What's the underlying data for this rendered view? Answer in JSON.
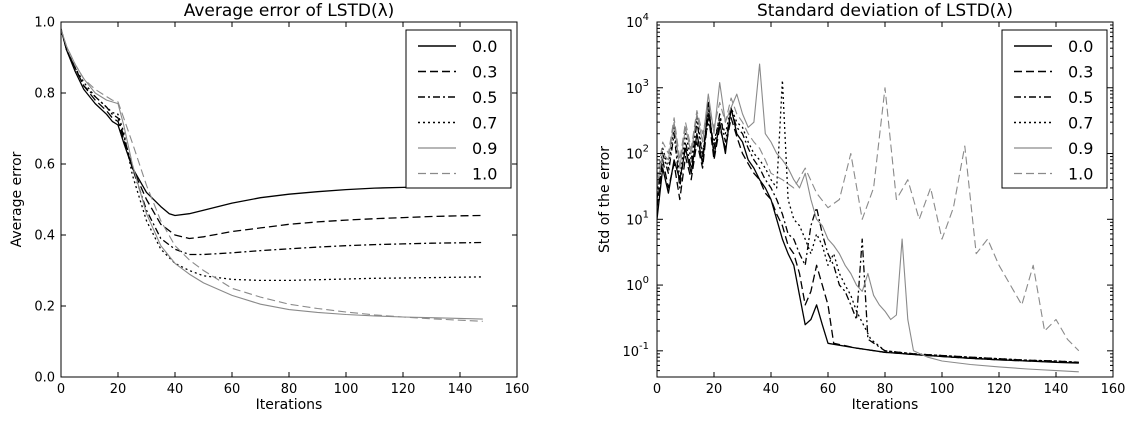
{
  "chart_data": [
    {
      "type": "line",
      "title": "Average error of LSTD(λ)",
      "xlabel": "Iterations",
      "ylabel": "Average error",
      "xlim": [
        0,
        160
      ],
      "ylim": [
        0.0,
        1.0
      ],
      "yscale": "linear",
      "xticks": [
        "0",
        "20",
        "40",
        "60",
        "80",
        "100",
        "120",
        "140",
        "160"
      ],
      "yticks": [
        "0.0",
        "0.2",
        "0.4",
        "0.6",
        "0.8",
        "1.0"
      ],
      "grid": false,
      "legend_position": "top-right",
      "series": [
        {
          "name": "0.0",
          "color": "#000000",
          "dash": "solid",
          "x": [
            0,
            2,
            5,
            8,
            12,
            16,
            18,
            20,
            22,
            25,
            30,
            35,
            38,
            40,
            45,
            50,
            60,
            70,
            80,
            90,
            100,
            110,
            120,
            130,
            140,
            148
          ],
          "y": [
            0.98,
            0.92,
            0.86,
            0.81,
            0.77,
            0.74,
            0.72,
            0.71,
            0.66,
            0.59,
            0.52,
            0.48,
            0.46,
            0.455,
            0.46,
            0.47,
            0.49,
            0.505,
            0.515,
            0.522,
            0.528,
            0.532,
            0.534,
            0.536,
            0.538,
            0.54
          ]
        },
        {
          "name": "0.3",
          "color": "#000000",
          "dash": "dashed",
          "x": [
            0,
            2,
            5,
            8,
            12,
            16,
            18,
            20,
            22,
            25,
            30,
            35,
            40,
            45,
            50,
            60,
            70,
            80,
            90,
            100,
            110,
            120,
            130,
            140,
            148
          ],
          "y": [
            0.98,
            0.92,
            0.87,
            0.82,
            0.78,
            0.75,
            0.73,
            0.72,
            0.67,
            0.59,
            0.5,
            0.43,
            0.4,
            0.39,
            0.395,
            0.41,
            0.42,
            0.43,
            0.437,
            0.442,
            0.446,
            0.449,
            0.452,
            0.454,
            0.455
          ]
        },
        {
          "name": "0.5",
          "color": "#000000",
          "dash": "dashdot",
          "x": [
            0,
            2,
            5,
            8,
            12,
            16,
            18,
            20,
            22,
            25,
            30,
            35,
            40,
            45,
            50,
            60,
            70,
            80,
            90,
            100,
            110,
            120,
            130,
            140,
            148
          ],
          "y": [
            0.98,
            0.92,
            0.87,
            0.82,
            0.79,
            0.76,
            0.74,
            0.73,
            0.68,
            0.59,
            0.47,
            0.39,
            0.36,
            0.345,
            0.345,
            0.35,
            0.356,
            0.361,
            0.366,
            0.37,
            0.373,
            0.375,
            0.377,
            0.378,
            0.379
          ]
        },
        {
          "name": "0.7",
          "color": "#000000",
          "dash": "dotted",
          "x": [
            0,
            2,
            5,
            8,
            12,
            16,
            18,
            20,
            22,
            25,
            30,
            35,
            40,
            45,
            50,
            60,
            70,
            80,
            90,
            100,
            110,
            120,
            130,
            140,
            148
          ],
          "y": [
            0.98,
            0.92,
            0.87,
            0.83,
            0.79,
            0.76,
            0.745,
            0.74,
            0.69,
            0.57,
            0.44,
            0.36,
            0.32,
            0.3,
            0.285,
            0.275,
            0.272,
            0.272,
            0.274,
            0.276,
            0.278,
            0.279,
            0.28,
            0.281,
            0.282
          ]
        },
        {
          "name": "0.9",
          "color": "#8a8a8a",
          "dash": "solid",
          "x": [
            0,
            2,
            5,
            8,
            12,
            16,
            18,
            20,
            22,
            25,
            30,
            35,
            40,
            45,
            50,
            60,
            70,
            80,
            90,
            100,
            110,
            120,
            130,
            140,
            148
          ],
          "y": [
            0.98,
            0.93,
            0.88,
            0.84,
            0.8,
            0.78,
            0.775,
            0.77,
            0.71,
            0.6,
            0.46,
            0.37,
            0.32,
            0.29,
            0.265,
            0.23,
            0.205,
            0.19,
            0.182,
            0.176,
            0.172,
            0.169,
            0.167,
            0.165,
            0.163
          ]
        },
        {
          "name": "1.0",
          "color": "#8a8a8a",
          "dash": "dashed",
          "x": [
            0,
            2,
            5,
            8,
            12,
            16,
            18,
            20,
            22,
            25,
            30,
            35,
            40,
            45,
            50,
            60,
            70,
            80,
            90,
            100,
            110,
            120,
            130,
            140,
            148
          ],
          "y": [
            0.98,
            0.93,
            0.88,
            0.84,
            0.81,
            0.79,
            0.78,
            0.775,
            0.73,
            0.66,
            0.54,
            0.44,
            0.37,
            0.33,
            0.3,
            0.25,
            0.225,
            0.205,
            0.193,
            0.183,
            0.175,
            0.169,
            0.164,
            0.16,
            0.157
          ]
        }
      ]
    },
    {
      "type": "line",
      "title": "Standard deviation of LSTD(λ)",
      "xlabel": "Iterations",
      "ylabel": "Std of the error",
      "xlim": [
        0,
        160
      ],
      "ylim": [
        0.04,
        10000
      ],
      "yscale": "log",
      "xticks": [
        "0",
        "20",
        "40",
        "60",
        "80",
        "100",
        "120",
        "140",
        "160"
      ],
      "yticks": [
        {
          "value": 0.1,
          "base": "10",
          "exp": "-1"
        },
        {
          "value": 1,
          "base": "10",
          "exp": "0"
        },
        {
          "value": 10,
          "base": "10",
          "exp": "1"
        },
        {
          "value": 100,
          "base": "10",
          "exp": "2"
        },
        {
          "value": 1000,
          "base": "10",
          "exp": "3"
        },
        {
          "value": 10000,
          "base": "10",
          "exp": "4"
        }
      ],
      "grid": false,
      "legend_position": "top-right",
      "series": [
        {
          "name": "0.0",
          "color": "#000000",
          "dash": "solid",
          "x": [
            0,
            2,
            4,
            6,
            8,
            10,
            12,
            14,
            16,
            18,
            20,
            22,
            24,
            26,
            28,
            30,
            32,
            34,
            36,
            38,
            40,
            42,
            44,
            46,
            48,
            50,
            52,
            54,
            56,
            58,
            60,
            70,
            80,
            90,
            100,
            110,
            120,
            130,
            140,
            148
          ],
          "y": [
            10,
            60,
            25,
            80,
            40,
            120,
            50,
            200,
            70,
            600,
            90,
            300,
            100,
            500,
            200,
            150,
            80,
            60,
            40,
            30,
            20,
            10,
            5,
            3,
            2,
            0.7,
            0.25,
            0.3,
            0.5,
            0.25,
            0.13,
            0.11,
            0.095,
            0.088,
            0.082,
            0.077,
            0.073,
            0.07,
            0.067,
            0.065
          ]
        },
        {
          "name": "0.3",
          "color": "#000000",
          "dash": "dashed",
          "x": [
            0,
            2,
            4,
            6,
            8,
            10,
            12,
            14,
            16,
            18,
            20,
            22,
            24,
            26,
            28,
            30,
            32,
            34,
            36,
            38,
            40,
            42,
            44,
            46,
            48,
            50,
            52,
            54,
            56,
            58,
            60,
            62,
            70,
            80,
            90,
            100,
            110,
            120,
            130,
            140,
            148
          ],
          "y": [
            15,
            80,
            30,
            70,
            20,
            90,
            40,
            150,
            60,
            400,
            80,
            250,
            120,
            350,
            180,
            100,
            70,
            50,
            40,
            25,
            20,
            12,
            8,
            4,
            3,
            1.5,
            0.5,
            0.8,
            2,
            1,
            0.5,
            0.13,
            0.11,
            0.095,
            0.088,
            0.082,
            0.077,
            0.073,
            0.07,
            0.068,
            0.066
          ]
        },
        {
          "name": "0.5",
          "color": "#000000",
          "dash": "dashdot",
          "x": [
            0,
            2,
            4,
            6,
            8,
            10,
            12,
            14,
            16,
            18,
            20,
            22,
            24,
            26,
            28,
            30,
            32,
            34,
            36,
            38,
            40,
            42,
            44,
            46,
            48,
            50,
            52,
            54,
            56,
            58,
            60,
            62,
            64,
            66,
            68,
            70,
            72,
            74,
            80,
            90,
            100,
            110,
            120,
            130,
            140,
            148
          ],
          "y": [
            20,
            100,
            50,
            200,
            30,
            150,
            60,
            300,
            90,
            500,
            120,
            400,
            150,
            450,
            250,
            200,
            120,
            80,
            60,
            40,
            30,
            20,
            12,
            6,
            5,
            3,
            2,
            8,
            15,
            6,
            3,
            2,
            1,
            0.8,
            0.5,
            0.3,
            5,
            0.15,
            0.1,
            0.09,
            0.085,
            0.08,
            0.076,
            0.072,
            0.07,
            0.067
          ]
        },
        {
          "name": "0.7",
          "color": "#000000",
          "dash": "dotted",
          "x": [
            0,
            2,
            4,
            6,
            8,
            10,
            12,
            14,
            16,
            18,
            20,
            22,
            24,
            26,
            28,
            30,
            32,
            34,
            36,
            38,
            40,
            42,
            44,
            46,
            48,
            50,
            52,
            54,
            56,
            58,
            60,
            62,
            64,
            66,
            68,
            70,
            75,
            80,
            90,
            100,
            110,
            120,
            130,
            140,
            148
          ],
          "y": [
            25,
            120,
            60,
            250,
            40,
            200,
            80,
            350,
            100,
            300,
            150,
            350,
            200,
            500,
            300,
            250,
            150,
            100,
            80,
            60,
            40,
            30,
            1300,
            20,
            10,
            8,
            5,
            3,
            6,
            4,
            2,
            3,
            1.5,
            1,
            0.7,
            0.4,
            0.15,
            0.1,
            0.09,
            0.085,
            0.08,
            0.076,
            0.072,
            0.07,
            0.067
          ]
        },
        {
          "name": "0.9",
          "color": "#8a8a8a",
          "dash": "solid",
          "x": [
            0,
            2,
            4,
            6,
            8,
            10,
            12,
            14,
            16,
            18,
            20,
            22,
            24,
            26,
            28,
            30,
            32,
            34,
            36,
            38,
            40,
            42,
            44,
            46,
            48,
            50,
            52,
            54,
            56,
            58,
            60,
            62,
            64,
            66,
            68,
            70,
            72,
            74,
            76,
            78,
            80,
            82,
            84,
            86,
            88,
            90,
            95,
            100,
            110,
            120,
            130,
            140,
            148
          ],
          "y": [
            30,
            100,
            80,
            300,
            60,
            250,
            100,
            400,
            150,
            800,
            200,
            1200,
            300,
            500,
            800,
            400,
            250,
            300,
            2300,
            200,
            150,
            100,
            80,
            60,
            40,
            30,
            50,
            20,
            10,
            8,
            5,
            4,
            3,
            2,
            1.5,
            1,
            0.8,
            1.5,
            0.7,
            0.5,
            0.4,
            0.3,
            0.35,
            5,
            0.3,
            0.1,
            0.08,
            0.07,
            0.062,
            0.057,
            0.053,
            0.05,
            0.048
          ]
        },
        {
          "name": "1.0",
          "color": "#8a8a8a",
          "dash": "dashed",
          "x": [
            0,
            2,
            4,
            6,
            8,
            10,
            12,
            14,
            16,
            18,
            20,
            22,
            24,
            26,
            28,
            30,
            32,
            34,
            36,
            38,
            40,
            44,
            48,
            52,
            56,
            60,
            64,
            68,
            72,
            76,
            80,
            84,
            88,
            92,
            96,
            100,
            104,
            108,
            112,
            116,
            120,
            124,
            128,
            132,
            136,
            140,
            144,
            148
          ],
          "y": [
            40,
            150,
            100,
            350,
            80,
            300,
            120,
            450,
            200,
            500,
            250,
            600,
            300,
            700,
            400,
            300,
            200,
            150,
            120,
            80,
            50,
            40,
            30,
            60,
            25,
            15,
            20,
            100,
            10,
            30,
            1000,
            20,
            40,
            10,
            30,
            5,
            15,
            130,
            3,
            5,
            2,
            1,
            0.5,
            2,
            0.2,
            0.3,
            0.15,
            0.1
          ]
        }
      ]
    }
  ]
}
